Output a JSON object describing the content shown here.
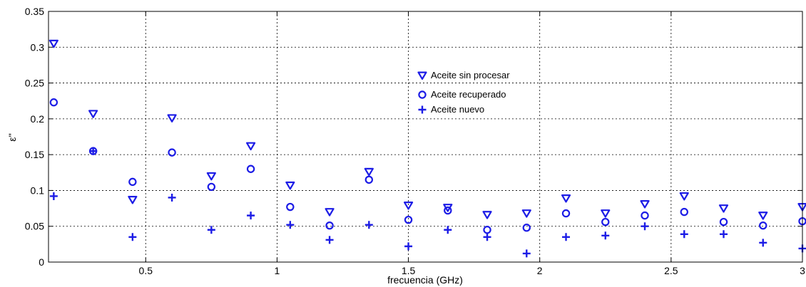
{
  "chart_data": {
    "type": "scatter",
    "xlabel": "frecuencia (GHz)",
    "ylabel": "ε''",
    "xlim": [
      0.13,
      3.0
    ],
    "ylim": [
      0,
      0.35
    ],
    "x_ticks": [
      0.5,
      1,
      1.5,
      2,
      2.5,
      3
    ],
    "x_tick_labels": [
      "0.5",
      "1",
      "1.5",
      "2",
      "2.5",
      "3"
    ],
    "y_ticks": [
      0,
      0.05,
      0.1,
      0.15,
      0.2,
      0.25,
      0.3,
      0.35
    ],
    "y_tick_labels": [
      "0",
      "0.05",
      "0.1",
      "0.15",
      "0.2",
      "0.25",
      "0.3",
      "0.35"
    ],
    "grid": true,
    "legend_position": "center",
    "colors": {
      "marker": "#1c1ce6",
      "axis": "#000000",
      "grid": "#000000"
    },
    "x": [
      0.15,
      0.3,
      0.45,
      0.6,
      0.75,
      0.9,
      1.05,
      1.2,
      1.35,
      1.5,
      1.65,
      1.8,
      1.95,
      2.1,
      2.25,
      2.4,
      2.55,
      2.7,
      2.85,
      3.0
    ],
    "series": [
      {
        "name": "Aceite sin procesar",
        "marker": "triangle-down",
        "values": [
          0.305,
          0.207,
          0.087,
          0.201,
          0.12,
          0.162,
          0.107,
          0.07,
          0.126,
          0.079,
          0.076,
          0.066,
          0.068,
          0.089,
          0.068,
          0.081,
          0.092,
          0.075,
          0.065,
          0.077
        ]
      },
      {
        "name": "Aceite recuperado",
        "marker": "circle",
        "values": [
          0.223,
          0.155,
          0.112,
          0.153,
          0.105,
          0.13,
          0.077,
          0.051,
          0.115,
          0.059,
          0.072,
          0.045,
          0.048,
          0.068,
          0.056,
          0.065,
          0.07,
          0.056,
          0.051,
          0.057
        ]
      },
      {
        "name": "Aceite nuevo",
        "marker": "plus",
        "values": [
          0.092,
          0.155,
          0.035,
          0.09,
          0.045,
          0.065,
          0.052,
          0.031,
          0.052,
          0.022,
          0.045,
          0.035,
          0.012,
          0.035,
          0.037,
          0.05,
          0.039,
          0.039,
          0.027,
          0.019
        ]
      }
    ]
  }
}
